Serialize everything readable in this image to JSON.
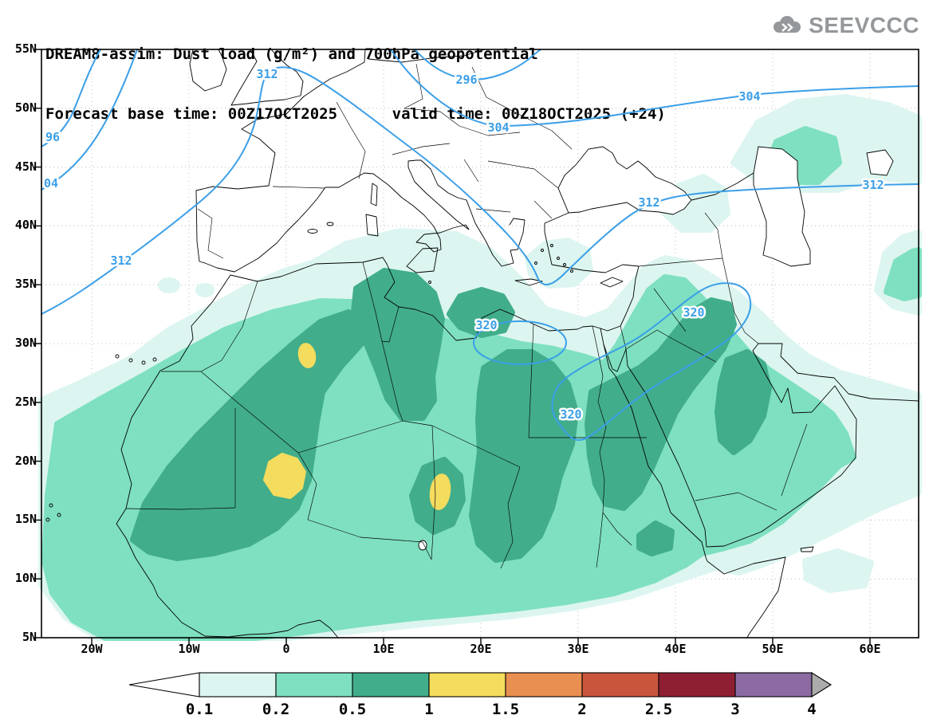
{
  "header": {
    "title_line1": "DREAM8-assim: Dust load (g/m²) and 700hPa geopotential",
    "title_line2": "Forecast base time: 00Z17OCT2025      valid time: 00Z18OCT2025 (+24)",
    "logo_text": "SEEVCCC"
  },
  "axes": {
    "y_labels": [
      "55N",
      "50N",
      "45N",
      "40N",
      "35N",
      "30N",
      "25N",
      "20N",
      "15N",
      "10N",
      "5N"
    ],
    "x_labels": [
      "20W",
      "10W",
      "0",
      "10E",
      "20E",
      "30E",
      "40E",
      "50E",
      "60E"
    ]
  },
  "map": {
    "contour_color": "#3b9fe8"
  },
  "contour_labels": [
    "96",
    "04",
    "312",
    "312",
    "296",
    "304",
    "304",
    "312",
    "312",
    "320",
    "320",
    "320"
  ],
  "colorbar": {
    "labels": [
      "0.1",
      "0.2",
      "0.5",
      "1",
      "1.5",
      "2",
      "2.5",
      "3",
      "4"
    ],
    "segment_colors": [
      "#ffffff",
      "#dcf5f0",
      "#7ee0c0",
      "#41ad8b",
      "#f4dc5e",
      "#e98f52",
      "#c9553d",
      "#8e1f33",
      "#8c6ba2",
      "#ababab"
    ]
  },
  "chart_data": {
    "type": "heatmap",
    "subtype": "filled-contour geographic map with line contours",
    "title": "DREAM8-assim: Dust load (g/m²) and 700hPa geopotential",
    "subtitle": "Forecast base time: 00Z17OCT2025, valid time: 00Z18OCT2025 (+24)",
    "region": "North Africa, Europe and Middle East",
    "x_axis": {
      "ticks": [
        "20W",
        "10W",
        "0",
        "10E",
        "20E",
        "30E",
        "40E",
        "50E",
        "60E"
      ],
      "range_deg": [
        -25,
        65
      ],
      "unit": "longitude"
    },
    "y_axis": {
      "ticks": [
        "55N",
        "50N",
        "45N",
        "40N",
        "35N",
        "30N",
        "25N",
        "20N",
        "15N",
        "10N",
        "5N"
      ],
      "range_deg": [
        5,
        55
      ],
      "unit": "latitude"
    },
    "grid": "dotted, every 10 deg lon / 5 deg lat",
    "filled_field": {
      "name": "Dust load",
      "unit": "g/m²",
      "levels": [
        0.1,
        0.2,
        0.5,
        1,
        1.5,
        2,
        2.5,
        3,
        4
      ],
      "palette": [
        "#ffffff",
        "#dcf5f0",
        "#7ee0c0",
        "#41ad8b",
        "#f4dc5e",
        "#e98f52",
        "#c9553d",
        "#8e1f33",
        "#8c6ba2",
        "#ababab"
      ],
      "max_level_reached": "1-1.5 g/m²",
      "features": [
        {
          "range": "0.1-0.5",
          "area": "broad dust plume from the Atlantic (west of 20W) across the Sahara, Sahel, Libya, Egypt, Sudan, the Levant and most of the Arabian Peninsula, roughly 5N-36N; detached patches near the Caspian Sea, eastern Turkey and the NW Arabian Sea"
        },
        {
          "range": "0.5-1",
          "area": "cores over Mauritania-Mali-southern Algeria, central Libya, Chad-Sudan, NE Sudan across the Red Sea into western Saudi Arabia, and central Arabia"
        },
        {
          "range": "1-1.5",
          "area": "three yellow maxima near 2E/29N (central Algeria), 0E/19N (Mali-Niger), 15E/17N (Chad)"
        }
      ]
    },
    "line_field": {
      "name": "700 hPa geopotential",
      "color": "#3b9fe8",
      "labeled_values": [
        296,
        304,
        312,
        320
      ],
      "pattern": "296 and 304 across northern Europe rising eastward; 312 from the Atlantic over the UK dipping into a trough near the Aegean then east across Turkey to the right edge; closed 320 highs over NE Libya and over Egypt-Saudi Arabia"
    },
    "colorbar": {
      "labels": [
        "0.1",
        "0.2",
        "0.5",
        "1",
        "1.5",
        "2",
        "2.5",
        "3",
        "4"
      ],
      "position": "bottom"
    }
  }
}
